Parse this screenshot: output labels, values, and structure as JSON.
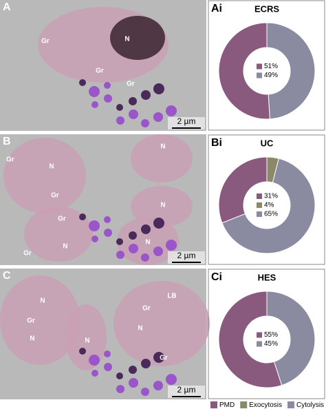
{
  "images": [
    {
      "label": "A",
      "annotations": [
        "N",
        "Gr",
        "Gr",
        "Gr"
      ],
      "scale_bar": "2 µm"
    },
    {
      "label": "B",
      "annotations": [
        "Gr",
        "N",
        "Gr",
        "N",
        "N",
        "Gr",
        "N",
        "Gr",
        "N"
      ],
      "scale_bar": "2 µm"
    },
    {
      "label": "C",
      "annotations": [
        "N",
        "Gr",
        "N",
        "N",
        "LB",
        "N",
        "Gr",
        "Gr"
      ],
      "scale_bar": "2 µm"
    }
  ],
  "chart_data": [
    {
      "type": "pie",
      "panel": "Ai",
      "title": "ECRS",
      "categories": [
        "PMD",
        "Cytolysis"
      ],
      "values": [
        51,
        49
      ],
      "value_labels": [
        "51%",
        "49%"
      ],
      "colors": [
        "#8a5a7e",
        "#8a8aa0"
      ]
    },
    {
      "type": "pie",
      "panel": "Bi",
      "title": "UC",
      "categories": [
        "PMD",
        "Exocytosis",
        "Cytolysis"
      ],
      "values": [
        31,
        4,
        65
      ],
      "value_labels": [
        "31%",
        "4%",
        "65%"
      ],
      "colors": [
        "#8a5a7e",
        "#8a8a6a",
        "#8a8aa0"
      ]
    },
    {
      "type": "pie",
      "panel": "Ci",
      "title": "HES",
      "categories": [
        "PMD",
        "Cytolysis"
      ],
      "values": [
        55,
        45
      ],
      "value_labels": [
        "55%",
        "45%"
      ],
      "colors": [
        "#8a5a7e",
        "#8a8aa0"
      ]
    }
  ],
  "legend": {
    "items": [
      {
        "name": "PMD",
        "color": "#8a5a7e"
      },
      {
        "name": "Exocytosis",
        "color": "#8a8a6a"
      },
      {
        "name": "Cytolysis",
        "color": "#8a8aa0"
      }
    ]
  }
}
